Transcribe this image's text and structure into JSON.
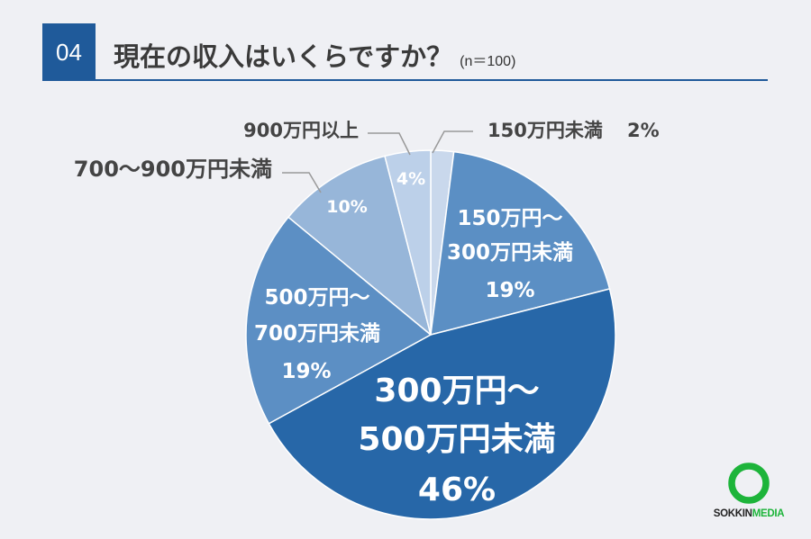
{
  "header": {
    "number": "04",
    "title": "現在の収入はいくらですか？",
    "note": "(n＝100)"
  },
  "colors": {
    "accent": "#1f5a9a",
    "background": "#eff0f4",
    "logo_green": "#1db43a"
  },
  "chart_data": {
    "type": "pie",
    "start": "12 o'clock",
    "direction": "clockwise",
    "slices": [
      {
        "label": "150万円未満",
        "value": 2,
        "value_label": "2%",
        "color": "#c9d8ec",
        "label_placement": "outside"
      },
      {
        "label": "150万円～300万円未満",
        "value": 19,
        "value_label": "19%",
        "color": "#5b8fc4",
        "label_placement": "inside"
      },
      {
        "label": "300万円～500万円未満",
        "value": 46,
        "value_label": "46%",
        "color": "#2767a8",
        "label_placement": "inside"
      },
      {
        "label": "500万円～700万円未満",
        "value": 19,
        "value_label": "19%",
        "color": "#5c8fc4",
        "label_placement": "inside"
      },
      {
        "label": "700～900万円未満",
        "value": 10,
        "value_label": "10%",
        "color": "#97b6d9",
        "label_placement": "outside"
      },
      {
        "label": "900万円以上",
        "value": 4,
        "value_label": "4%",
        "color": "#bcd0e9",
        "label_placement": "outside"
      }
    ]
  },
  "logo": {
    "part1": "SOKKIN",
    "part2": "MEDIA"
  }
}
